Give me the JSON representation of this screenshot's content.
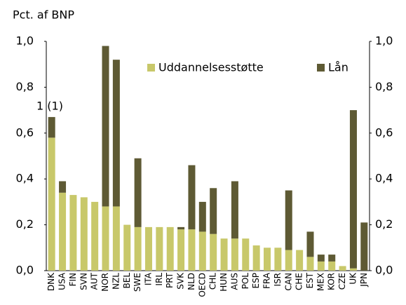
{
  "chart_data": {
    "type": "stacked_bar",
    "y_label": "Pct. af BNP",
    "annotation": "1 (1)",
    "categories": [
      "DNK",
      "USA",
      "FIN",
      "SVN",
      "AUT",
      "NOR",
      "NZL",
      "BEL",
      "SWE",
      "ITA",
      "IRL",
      "PRT",
      "SVK",
      "NLD",
      "OECD",
      "CHL",
      "HUN",
      "AUS",
      "POL",
      "ESP",
      "FRA",
      "ISR",
      "CAN",
      "CHE",
      "EST",
      "MEX",
      "KOR",
      "CZE",
      "UK",
      "JPN"
    ],
    "series": [
      {
        "name": "Uddannelsesstøtte",
        "color": "#c8c86a",
        "values": [
          0.58,
          0.34,
          0.33,
          0.32,
          0.3,
          0.28,
          0.28,
          0.2,
          0.19,
          0.19,
          0.19,
          0.19,
          0.18,
          0.18,
          0.17,
          0.16,
          0.14,
          0.14,
          0.14,
          0.11,
          0.1,
          0.1,
          0.09,
          0.09,
          0.06,
          0.04,
          0.04,
          0.02,
          0.01,
          0
        ]
      },
      {
        "name": "Lån",
        "color": "#5e5a34",
        "values": [
          0.09,
          0.05,
          0,
          0,
          0,
          0.7,
          0.64,
          0,
          0.3,
          0,
          0,
          0,
          0.01,
          0.28,
          0.13,
          0.2,
          0,
          0.25,
          0,
          0,
          0,
          0,
          0.26,
          0,
          0.11,
          0.03,
          0.03,
          0,
          0.69,
          0.21
        ]
      }
    ],
    "ylim": [
      0,
      1
    ],
    "yticks": [
      {
        "value": 0,
        "label": "0,0"
      },
      {
        "value": 0.2,
        "label": "0,2"
      },
      {
        "value": 0.4,
        "label": "0,4"
      },
      {
        "value": 0.6,
        "label": "0,6"
      },
      {
        "value": 0.8,
        "label": "0,8"
      },
      {
        "value": 1,
        "label": "1,0"
      }
    ],
    "y2lim": [
      0,
      1
    ],
    "y2ticks": [
      {
        "value": 0,
        "label": "0,0"
      },
      {
        "value": 0.2,
        "label": "0,2"
      },
      {
        "value": 0.4,
        "label": "0,4"
      },
      {
        "value": 0.6,
        "label": "0,6"
      },
      {
        "value": 0.8,
        "label": "0,8"
      },
      {
        "value": 1,
        "label": "1,0"
      }
    ]
  }
}
